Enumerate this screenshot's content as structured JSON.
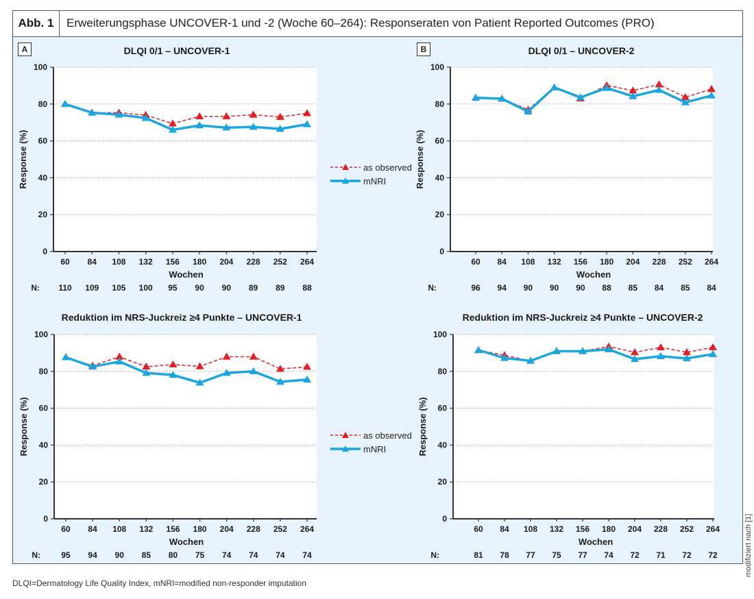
{
  "figure": {
    "label": "Abb. 1",
    "title": "Erweiterungsphase UNCOVER-1 und -2 (Woche 60–264): Responseraten von Patient Reported Outcomes (PRO)",
    "panels": [
      {
        "label": "A"
      },
      {
        "label": "B"
      }
    ],
    "footnote": "DLQI=Dermatology Life Quality Index, mNRI=modified non-responder imputation",
    "credit": "modifiziert nach [1]",
    "colors": {
      "as_observed": "#e31e24",
      "mnri": "#1ba6df",
      "background": "#e6f3fc"
    }
  },
  "legend": {
    "as_observed": "as observed",
    "mnri": "mNRI"
  },
  "chart_data": [
    {
      "type": "line",
      "title": "DLQI 0/1 – UNCOVER-1",
      "xlabel": "Wochen",
      "ylabel": "Response (%)",
      "ylim": [
        0,
        100
      ],
      "yticks": [
        0,
        20,
        40,
        60,
        80,
        100
      ],
      "grid": true,
      "categories": [
        "60",
        "84",
        "108",
        "132",
        "156",
        "180",
        "204",
        "228",
        "252",
        "264"
      ],
      "n_label": "N:",
      "n": [
        "110",
        "109",
        "105",
        "100",
        "95",
        "90",
        "90",
        "89",
        "89",
        "88"
      ],
      "series": [
        {
          "name": "as observed",
          "values": [
            80.0,
            75.3,
            75.3,
            74.0,
            69.4,
            73.3,
            73.3,
            74.2,
            73.0,
            75.0
          ]
        },
        {
          "name": "mNRI",
          "values": [
            80.0,
            75.3,
            74.2,
            72.4,
            66.0,
            68.4,
            67.2,
            67.6,
            66.5,
            69.0
          ]
        }
      ],
      "legend_position": "right"
    },
    {
      "type": "line",
      "title": "DLQI 0/1 – UNCOVER-2",
      "xlabel": "Wochen",
      "ylabel": "Response (%)",
      "ylim": [
        0,
        100
      ],
      "yticks": [
        0,
        20,
        40,
        60,
        80,
        100
      ],
      "grid": true,
      "categories": [
        "60",
        "84",
        "108",
        "132",
        "156",
        "180",
        "204",
        "228",
        "252",
        "264"
      ],
      "n_label": "N:",
      "n": [
        "96",
        "94",
        "90",
        "90",
        "90",
        "88",
        "85",
        "84",
        "85",
        "84"
      ],
      "series": [
        {
          "name": "as observed",
          "values": [
            83.4,
            82.9,
            76.9,
            89.0,
            83.0,
            90.1,
            87.3,
            90.6,
            83.7,
            88.1
          ]
        },
        {
          "name": "mNRI",
          "values": [
            83.4,
            82.9,
            75.9,
            89.0,
            83.6,
            88.7,
            84.2,
            87.6,
            80.9,
            84.6
          ]
        }
      ]
    },
    {
      "type": "line",
      "title": "Reduktion im NRS-Juckreiz ≥4 Punkte – UNCOVER-1",
      "xlabel": "Wochen",
      "ylabel": "Response (%)",
      "ylim": [
        0,
        100
      ],
      "yticks": [
        0,
        20,
        40,
        60,
        80,
        100
      ],
      "grid": true,
      "categories": [
        "60",
        "84",
        "108",
        "132",
        "156",
        "180",
        "204",
        "228",
        "252",
        "264"
      ],
      "n_label": "N:",
      "n": [
        "95",
        "94",
        "90",
        "85",
        "80",
        "75",
        "74",
        "74",
        "74",
        "74"
      ],
      "series": [
        {
          "name": "as observed",
          "values": [
            87.6,
            83.1,
            87.9,
            82.5,
            83.7,
            82.7,
            87.9,
            87.9,
            81.3,
            82.4
          ]
        },
        {
          "name": "mNRI",
          "values": [
            87.6,
            82.5,
            85.3,
            79.1,
            78.0,
            73.8,
            79.1,
            80.0,
            74.3,
            75.5
          ]
        }
      ],
      "legend_position": "right"
    },
    {
      "type": "line",
      "title": "Reduktion im NRS-Juckreiz ≥4 Punkte – UNCOVER-2",
      "xlabel": "Wochen",
      "ylabel": "Response (%)",
      "ylim": [
        0,
        100
      ],
      "yticks": [
        0,
        20,
        40,
        60,
        80,
        100
      ],
      "grid": true,
      "categories": [
        "60",
        "84",
        "108",
        "132",
        "156",
        "180",
        "204",
        "228",
        "252",
        "264"
      ],
      "n_label": "N:",
      "n": [
        "81",
        "78",
        "77",
        "75",
        "77",
        "74",
        "72",
        "71",
        "72",
        "72"
      ],
      "series": [
        {
          "name": "as observed",
          "values": [
            91.5,
            88.7,
            85.7,
            90.9,
            90.9,
            93.4,
            90.3,
            93.0,
            90.3,
            93.0
          ]
        },
        {
          "name": "mNRI",
          "values": [
            91.5,
            87.2,
            85.7,
            90.9,
            90.9,
            91.9,
            86.6,
            88.2,
            87.0,
            89.3
          ]
        }
      ]
    }
  ]
}
